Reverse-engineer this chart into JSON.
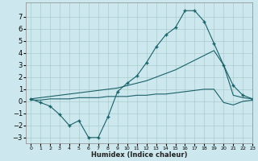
{
  "title": "",
  "xlabel": "Humidex (Indice chaleur)",
  "background_color": "#cce8ee",
  "grid_color": "#aacccc",
  "line_color": "#1a6068",
  "xlim": [
    -0.5,
    23
  ],
  "ylim": [
    -3.5,
    8.2
  ],
  "yticks": [
    -3,
    -2,
    -1,
    0,
    1,
    2,
    3,
    4,
    5,
    6,
    7
  ],
  "xticks": [
    0,
    1,
    2,
    3,
    4,
    5,
    6,
    7,
    8,
    9,
    10,
    11,
    12,
    13,
    14,
    15,
    16,
    17,
    18,
    19,
    20,
    21,
    22,
    23
  ],
  "series": [
    {
      "x": [
        0,
        1,
        2,
        3,
        4,
        5,
        6,
        7,
        8,
        9,
        10,
        11,
        12,
        13,
        14,
        15,
        16,
        17,
        18,
        19,
        20,
        21,
        22,
        23
      ],
      "y": [
        0.2,
        -0.1,
        -0.4,
        -1.1,
        -2.0,
        -1.6,
        -3.0,
        -3.0,
        -1.3,
        0.8,
        1.5,
        2.1,
        3.2,
        4.5,
        5.5,
        6.1,
        7.5,
        7.5,
        6.6,
        4.8,
        3.0,
        1.3,
        0.5,
        0.2
      ],
      "marker": "+"
    },
    {
      "x": [
        0,
        1,
        2,
        3,
        4,
        5,
        6,
        7,
        8,
        9,
        10,
        11,
        12,
        13,
        14,
        15,
        16,
        17,
        18,
        19,
        20,
        21,
        22,
        23
      ],
      "y": [
        0.2,
        0.3,
        0.4,
        0.5,
        0.6,
        0.7,
        0.8,
        0.9,
        1.0,
        1.1,
        1.3,
        1.5,
        1.7,
        2.0,
        2.3,
        2.6,
        3.0,
        3.4,
        3.8,
        4.2,
        3.0,
        0.5,
        0.3,
        0.2
      ],
      "marker": null
    },
    {
      "x": [
        0,
        1,
        2,
        3,
        4,
        5,
        6,
        7,
        8,
        9,
        10,
        11,
        12,
        13,
        14,
        15,
        16,
        17,
        18,
        19,
        20,
        21,
        22,
        23
      ],
      "y": [
        0.1,
        0.1,
        0.2,
        0.2,
        0.2,
        0.3,
        0.3,
        0.3,
        0.4,
        0.4,
        0.4,
        0.5,
        0.5,
        0.6,
        0.6,
        0.7,
        0.8,
        0.9,
        1.0,
        1.0,
        -0.1,
        -0.3,
        0.0,
        0.1
      ],
      "marker": null
    }
  ]
}
